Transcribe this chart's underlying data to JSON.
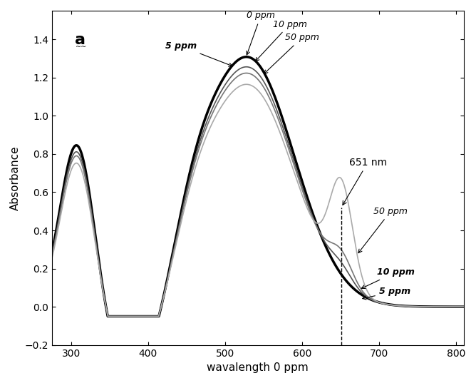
{
  "title": "a",
  "xlabel": "wavalength 0 ppm",
  "ylabel": "Absorbance",
  "xlim": [
    275,
    810
  ],
  "ylim": [
    -0.2,
    1.55
  ],
  "yticks": [
    -0.2,
    0.0,
    0.2,
    0.4,
    0.6,
    0.8,
    1.0,
    1.2,
    1.4
  ],
  "xticks": [
    300,
    400,
    500,
    600,
    700,
    800
  ],
  "annotation_651": "651 nm",
  "curves": {
    "0ppm": {
      "lw": 2.5,
      "color": "#000000",
      "style": "-"
    },
    "5ppm": {
      "lw": 1.2,
      "color": "#555555",
      "style": "-"
    },
    "10ppm": {
      "lw": 1.2,
      "color": "#777777",
      "style": "-"
    },
    "50ppm": {
      "lw": 1.2,
      "color": "#aaaaaa",
      "style": "-"
    }
  }
}
